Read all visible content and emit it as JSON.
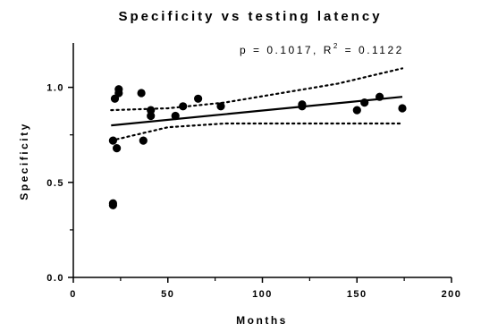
{
  "chart_data": {
    "type": "scatter",
    "title": "Specificity vs testing latency",
    "annotation": {
      "text_before_sup": "p = 0.1017, R",
      "sup": "2",
      "text_after_sup": " = 0.1122"
    },
    "xlabel": "Months",
    "ylabel": "Specificity",
    "xlim": [
      0,
      200
    ],
    "ylim": [
      0,
      1.25
    ],
    "x_ticks": [
      0,
      50,
      100,
      150,
      200
    ],
    "x_tick_labels": [
      "0",
      "50",
      "100",
      "150",
      "200"
    ],
    "y_ticks": [
      0.0,
      0.5,
      1.0
    ],
    "y_tick_labels": [
      "0.0",
      "0.5",
      "1.0"
    ],
    "grid": false,
    "legend": "none",
    "points": {
      "x": [
        21,
        21,
        21,
        22,
        23,
        24,
        24,
        36,
        37,
        41,
        41,
        54,
        58,
        66,
        78,
        121,
        121,
        150,
        154,
        162,
        174
      ],
      "y": [
        0.38,
        0.39,
        0.72,
        0.94,
        0.68,
        0.97,
        0.99,
        0.97,
        0.72,
        0.85,
        0.88,
        0.85,
        0.9,
        0.94,
        0.9,
        0.9,
        0.91,
        0.88,
        0.92,
        0.95,
        0.89
      ]
    },
    "fit_line": {
      "x": [
        20,
        174
      ],
      "y": [
        0.8,
        0.95
      ]
    },
    "confidence_band": {
      "upper": {
        "x": [
          20,
          50,
          80,
          110,
          140,
          174
        ],
        "y": [
          0.88,
          0.89,
          0.92,
          0.97,
          1.02,
          1.1
        ]
      },
      "lower": {
        "x": [
          20,
          50,
          80,
          110,
          140,
          174
        ],
        "y": [
          0.72,
          0.79,
          0.81,
          0.81,
          0.81,
          0.81
        ]
      }
    },
    "colors": {
      "points": "#000000",
      "fit": "#000000",
      "band": "#000000",
      "axes": "#000000"
    }
  }
}
